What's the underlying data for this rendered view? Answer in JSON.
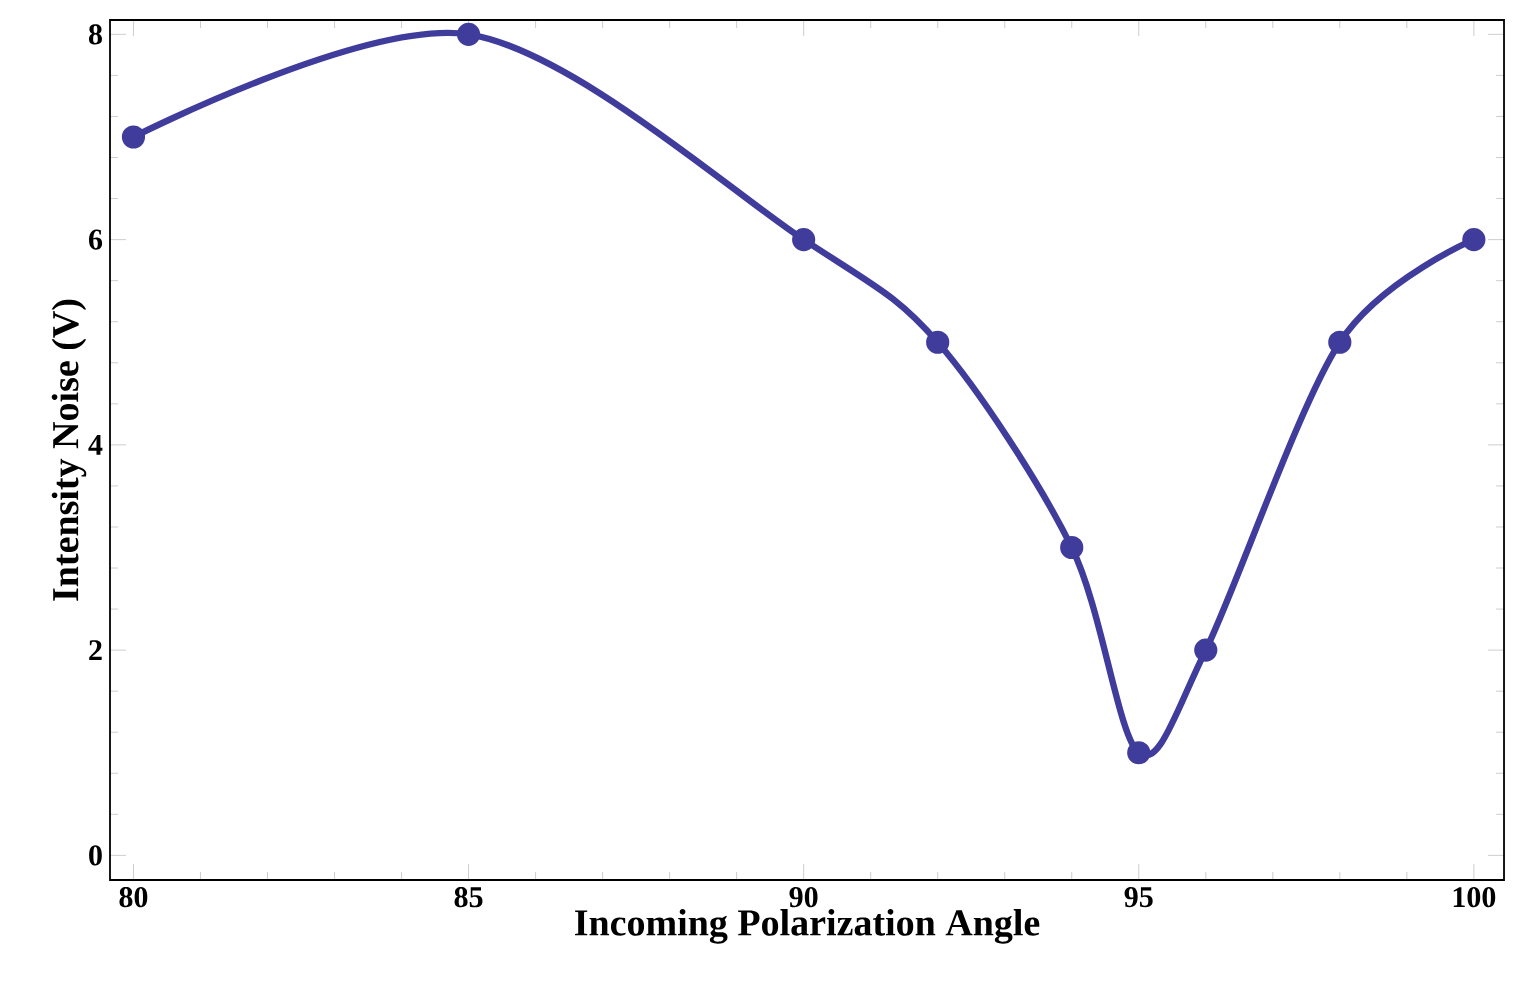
{
  "chart_data": {
    "type": "line",
    "xlabel": "Incoming Polarization Angle",
    "ylabel": "Intensity Noise (V)",
    "x": [
      80,
      85,
      90,
      92,
      94,
      95,
      96,
      98,
      100
    ],
    "series": [
      {
        "color": "#3f3c9c",
        "values": [
          7,
          8,
          6,
          5,
          3,
          1,
          2,
          5,
          6
        ]
      }
    ],
    "xlim": [
      79.65,
      100.45
    ],
    "ylim": [
      -0.24,
      8.14
    ],
    "xticks": [
      80,
      85,
      90,
      95,
      100
    ],
    "yticks": [
      0,
      2,
      4,
      6,
      8
    ],
    "marker": "circle",
    "line_style": "solid",
    "grid": false
  }
}
